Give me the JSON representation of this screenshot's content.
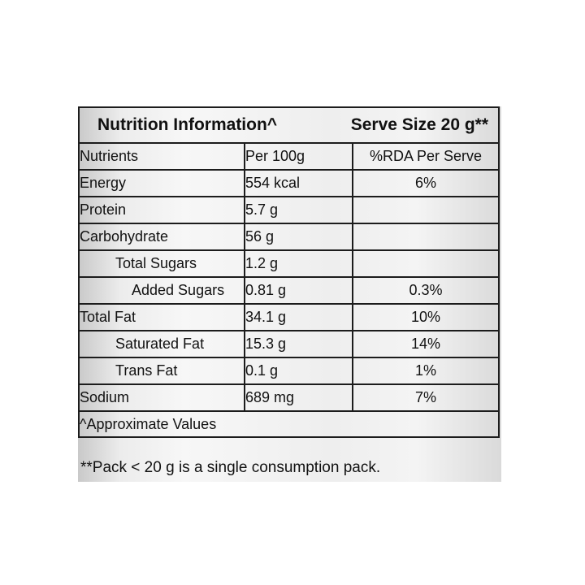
{
  "table": {
    "title": "Nutrition Information^",
    "serve_size": "Serve Size 20 g**",
    "headers": [
      "Nutrients",
      "Per 100g",
      "%RDA Per Serve"
    ],
    "rows": [
      {
        "name": "Energy",
        "per100g": "554 kcal",
        "rda": "6%",
        "indent": 0
      },
      {
        "name": "Protein",
        "per100g": "5.7 g",
        "rda": "",
        "indent": 0
      },
      {
        "name": "Carbohydrate",
        "per100g": "56 g",
        "rda": "",
        "indent": 0
      },
      {
        "name": "Total Sugars",
        "per100g": "1.2 g",
        "rda": "",
        "indent": 1
      },
      {
        "name": "Added Sugars",
        "per100g": "0.81 g",
        "rda": "0.3%",
        "indent": 2
      },
      {
        "name": "Total Fat",
        "per100g": "34.1 g",
        "rda": "10%",
        "indent": 0
      },
      {
        "name": "Saturated Fat",
        "per100g": "15.3 g",
        "rda": "14%",
        "indent": 1
      },
      {
        "name": "Trans Fat",
        "per100g": "0.1 g",
        "rda": "1%",
        "indent": 1
      },
      {
        "name": "Sodium",
        "per100g": "689 mg",
        "rda": "7%",
        "indent": 0
      }
    ],
    "footer": "^Approximate Values"
  },
  "note": "**Pack < 20 g is a single consumption pack."
}
